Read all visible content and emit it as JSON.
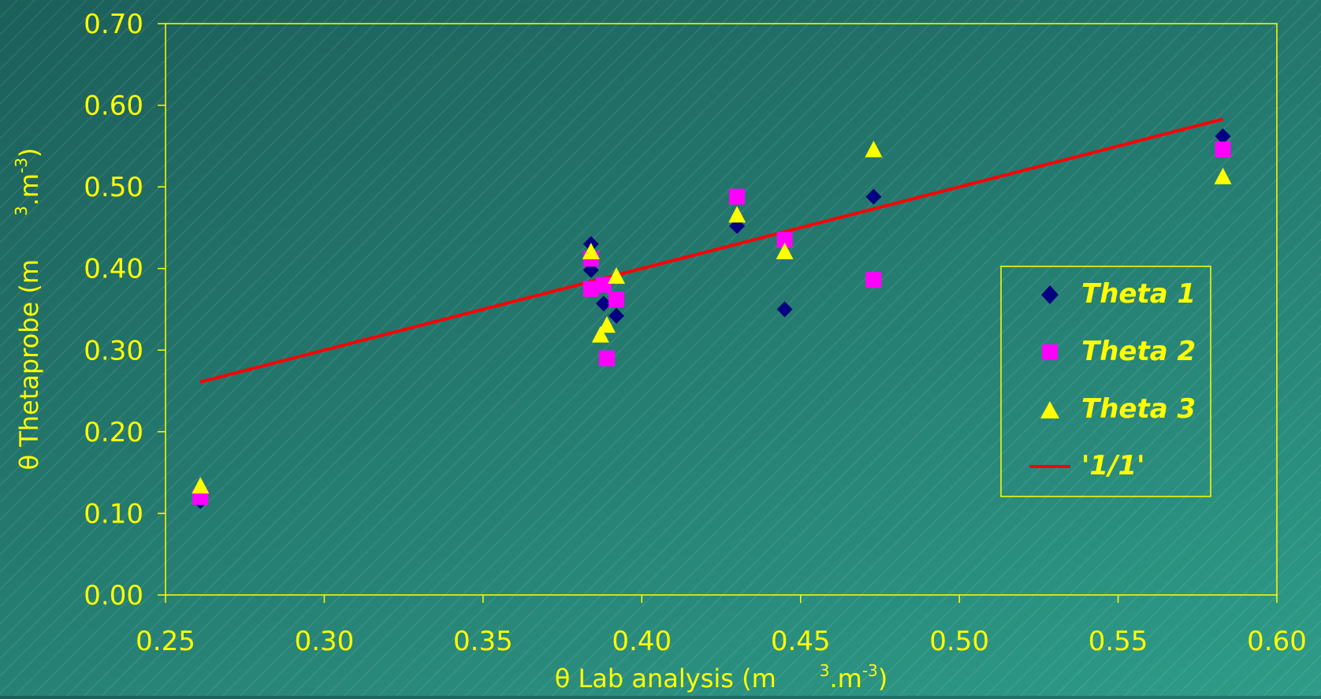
{
  "chart_data": {
    "type": "scatter",
    "xlabel": "θ Lab analysis (m³.m⁻³)",
    "xlabel_parts": {
      "main": "θ Lab analysis (m",
      "sup1": "3",
      "mid": ".m",
      "sup2": "-3",
      "end": ")"
    },
    "ylabel": "θ Thetaprobe (m³.m⁻³)",
    "ylabel_parts": {
      "main": "θ Thetaprobe (m",
      "sup1": "3",
      "mid": ".m",
      "sup2": "-3",
      "end": ")"
    },
    "xlim": [
      0.25,
      0.6
    ],
    "ylim": [
      0.0,
      0.7
    ],
    "x_ticks": [
      "0.25",
      "0.30",
      "0.35",
      "0.40",
      "0.45",
      "0.50",
      "0.55",
      "0.60"
    ],
    "y_ticks": [
      "0.00",
      "0.10",
      "0.20",
      "0.30",
      "0.40",
      "0.50",
      "0.60",
      "0.70"
    ],
    "grid": false,
    "legend_position": "right",
    "series": [
      {
        "name": "Theta 1",
        "marker": "diamond",
        "color": "#000080",
        "points": [
          [
            0.261,
            0.115
          ],
          [
            0.384,
            0.43
          ],
          [
            0.384,
            0.398
          ],
          [
            0.388,
            0.357
          ],
          [
            0.392,
            0.342
          ],
          [
            0.43,
            0.452
          ],
          [
            0.445,
            0.35
          ],
          [
            0.473,
            0.488
          ],
          [
            0.583,
            0.562
          ]
        ]
      },
      {
        "name": "Theta 2",
        "marker": "square",
        "color": "#ff00ff",
        "points": [
          [
            0.261,
            0.12
          ],
          [
            0.384,
            0.412
          ],
          [
            0.384,
            0.375
          ],
          [
            0.388,
            0.38
          ],
          [
            0.389,
            0.29
          ],
          [
            0.392,
            0.362
          ],
          [
            0.43,
            0.488
          ],
          [
            0.445,
            0.435
          ],
          [
            0.473,
            0.386
          ],
          [
            0.583,
            0.546
          ]
        ]
      },
      {
        "name": "Theta 3",
        "marker": "triangle",
        "color": "#ffff00",
        "points": [
          [
            0.261,
            0.133
          ],
          [
            0.384,
            0.42
          ],
          [
            0.387,
            0.318
          ],
          [
            0.389,
            0.33
          ],
          [
            0.392,
            0.39
          ],
          [
            0.43,
            0.465
          ],
          [
            0.445,
            0.42
          ],
          [
            0.473,
            0.545
          ],
          [
            0.583,
            0.512
          ]
        ]
      },
      {
        "name": "'1/1'",
        "marker": "line",
        "color": "#ff0000",
        "points": [
          [
            0.261,
            0.261
          ],
          [
            0.583,
            0.583
          ]
        ]
      }
    ]
  },
  "colors": {
    "background_start": "#1c5f5a",
    "background_end": "#2e9c88",
    "axis": "#ffff00",
    "text": "#ffff00"
  }
}
